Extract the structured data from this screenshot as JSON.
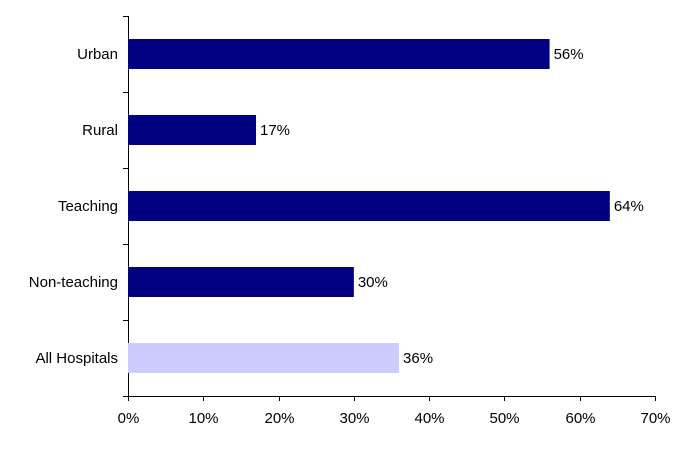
{
  "chart_data": {
    "type": "bar",
    "orientation": "horizontal",
    "categories": [
      "Urban",
      "Rural",
      "Teaching",
      "Non-teaching",
      "All Hospitals"
    ],
    "values": [
      56,
      17,
      64,
      30,
      36
    ],
    "value_labels": [
      "56%",
      "17%",
      "64%",
      "30%",
      "36%"
    ],
    "colors": [
      "#000080",
      "#000080",
      "#000080",
      "#000080",
      "#ccccff"
    ],
    "xlim": [
      0,
      70
    ],
    "xticks": [
      {
        "value": 0,
        "label": "0%"
      },
      {
        "value": 10,
        "label": "10%"
      },
      {
        "value": 20,
        "label": "20%"
      },
      {
        "value": 30,
        "label": "30%"
      },
      {
        "value": 40,
        "label": "40%"
      },
      {
        "value": 50,
        "label": "50%"
      },
      {
        "value": 60,
        "label": "60%"
      },
      {
        "value": 70,
        "label": "70%"
      }
    ],
    "grid": false
  }
}
